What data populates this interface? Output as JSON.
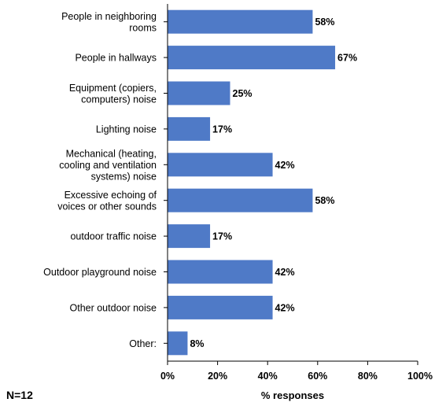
{
  "chart_data": {
    "type": "bar",
    "orientation": "horizontal",
    "categories": [
      [
        "People in neighboring",
        "rooms"
      ],
      [
        "People in hallways"
      ],
      [
        "Equipment (copiers,",
        "computers) noise"
      ],
      [
        "Lighting noise"
      ],
      [
        "Mechanical (heating,",
        "cooling and ventilation",
        "systems) noise"
      ],
      [
        "Excessive echoing of",
        "voices or other sounds"
      ],
      [
        "outdoor traffic noise"
      ],
      [
        "Outdoor playground noise"
      ],
      [
        "Other outdoor noise"
      ],
      [
        "Other:"
      ]
    ],
    "values": [
      58,
      67,
      25,
      17,
      42,
      58,
      17,
      42,
      42,
      8
    ],
    "value_labels": [
      "58%",
      "67%",
      "25%",
      "17%",
      "42%",
      "58%",
      "17%",
      "42%",
      "42%",
      "8%"
    ],
    "xlabel": "% responses",
    "xlim": [
      0,
      100
    ],
    "xticks": [
      0,
      20,
      40,
      60,
      80,
      100
    ],
    "xtick_labels": [
      "0%",
      "20%",
      "40%",
      "60%",
      "80%",
      "100%"
    ],
    "bar_color": "#4f7ac7",
    "grid": false
  },
  "footnote": "N=12"
}
